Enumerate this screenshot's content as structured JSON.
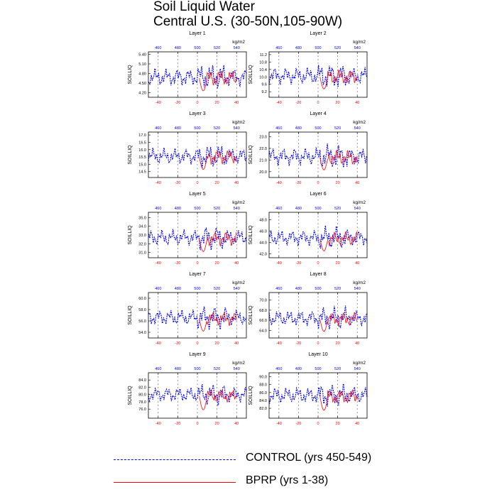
{
  "title": "Soil Liquid Water",
  "subtitle": "Central U.S. (30-50N,105-90W)",
  "colors": {
    "control": "#0000ff",
    "bprp": "#ff0000",
    "frame": "#000000",
    "grid": "#555555"
  },
  "legend": [
    {
      "label": "CONTROL (yrs 450-549)",
      "color": "#0000ff",
      "style": "dashed"
    },
    {
      "label": "BPRP (yrs 1-38)",
      "color": "#ff0000",
      "style": "solid"
    }
  ],
  "chart_data": [
    {
      "type": "line",
      "title": "Layer 1",
      "ylabel": "SOILLIQ",
      "top_axis_unit": "kg/m2",
      "ylim": [
        4.05,
        5.48
      ],
      "yticks": [
        "4.20",
        "4.50",
        "4.80",
        "5.10",
        "5.40"
      ],
      "ytick_values": [
        4.2,
        4.5,
        4.8,
        5.1,
        5.4
      ],
      "control_mean": 4.68,
      "control_amp": 0.3,
      "bprp_mean": 4.65,
      "bprp_amp": 0.28,
      "bprp_dip": 4.25,
      "xlim": [
        -50,
        50
      ],
      "xticks": [
        "-40",
        "-20",
        "0",
        "20",
        "40"
      ],
      "xtick_values": [
        -40,
        -20,
        0,
        20,
        40
      ],
      "top_xticks": [
        "460",
        "480",
        "500",
        "520",
        "540"
      ],
      "top_xtick_values": [
        -40,
        -20,
        0,
        20,
        40
      ]
    },
    {
      "type": "line",
      "title": "Layer 2",
      "ylabel": "SOILLIQ",
      "top_axis_unit": "kg/m2",
      "ylim": [
        8.9,
        11.35
      ],
      "yticks": [
        "9.2",
        "9.6",
        "10.0",
        "10.4",
        "10.8",
        "11.2"
      ],
      "ytick_values": [
        9.2,
        9.6,
        10.0,
        10.4,
        10.8,
        11.2
      ],
      "control_mean": 10.05,
      "control_amp": 0.5,
      "bprp_mean": 10.0,
      "bprp_amp": 0.45,
      "bprp_dip": 9.35,
      "xlim": [
        -50,
        50
      ],
      "xticks": [
        "-40",
        "-20",
        "0",
        "20",
        "40"
      ],
      "xtick_values": [
        -40,
        -20,
        0,
        20,
        40
      ],
      "top_xticks": [
        "460",
        "480",
        "500",
        "520",
        "540"
      ],
      "top_xtick_values": [
        -40,
        -20,
        0,
        20,
        40
      ]
    },
    {
      "type": "line",
      "title": "Layer 3",
      "ylabel": "SOILLIQ",
      "top_axis_unit": "kg/m2",
      "ylim": [
        14.1,
        17.2
      ],
      "yticks": [
        "14.5",
        "15.0",
        "15.5",
        "16.0",
        "16.5",
        "17.0"
      ],
      "ytick_values": [
        14.5,
        15.0,
        15.5,
        16.0,
        16.5,
        17.0
      ],
      "control_mean": 15.55,
      "control_amp": 0.6,
      "bprp_mean": 15.5,
      "bprp_amp": 0.55,
      "bprp_dip": 14.65,
      "xlim": [
        -50,
        50
      ],
      "xticks": [
        "-40",
        "-20",
        "0",
        "20",
        "40"
      ],
      "xtick_values": [
        -40,
        -20,
        0,
        20,
        40
      ],
      "top_xticks": [
        "460",
        "480",
        "500",
        "520",
        "540"
      ],
      "top_xtick_values": [
        -40,
        -20,
        0,
        20,
        40
      ]
    },
    {
      "type": "line",
      "title": "Layer 4",
      "ylabel": "SOILLIQ",
      "top_axis_unit": "kg/m2",
      "ylim": [
        19.5,
        23.4
      ],
      "yticks": [
        "20.0",
        "21.0",
        "22.0",
        "23.0"
      ],
      "ytick_values": [
        20.0,
        21.0,
        22.0,
        23.0
      ],
      "control_mean": 21.3,
      "control_amp": 0.8,
      "bprp_mean": 21.2,
      "bprp_amp": 0.7,
      "bprp_dip": 20.15,
      "xlim": [
        -50,
        50
      ],
      "xticks": [
        "-40",
        "-20",
        "0",
        "20",
        "40"
      ],
      "xtick_values": [
        -40,
        -20,
        0,
        20,
        40
      ],
      "top_xticks": [
        "460",
        "480",
        "500",
        "520",
        "540"
      ],
      "top_xtick_values": [
        -40,
        -20,
        0,
        20,
        40
      ]
    },
    {
      "type": "line",
      "title": "Layer 5",
      "ylabel": "SOILLIQ",
      "top_axis_unit": "kg/m2",
      "ylim": [
        30.4,
        35.6
      ],
      "yticks": [
        "31.0",
        "32.0",
        "33.0",
        "34.0",
        "35.0"
      ],
      "ytick_values": [
        31.0,
        32.0,
        33.0,
        34.0,
        35.0
      ],
      "control_mean": 32.7,
      "control_amp": 1.0,
      "bprp_mean": 32.6,
      "bprp_amp": 0.9,
      "bprp_dip": 31.1,
      "xlim": [
        -50,
        50
      ],
      "xticks": [
        "-40",
        "-20",
        "0",
        "20",
        "40"
      ],
      "xtick_values": [
        -40,
        -20,
        0,
        20,
        40
      ],
      "top_xticks": [
        "460",
        "480",
        "500",
        "520",
        "540"
      ],
      "top_xtick_values": [
        -40,
        -20,
        0,
        20,
        40
      ]
    },
    {
      "type": "line",
      "title": "Layer 6",
      "ylabel": "SOILLIQ",
      "top_axis_unit": "kg/m2",
      "ylim": [
        41.3,
        49.3
      ],
      "yticks": [
        "42.0",
        "44.0",
        "46.0",
        "48.0"
      ],
      "ytick_values": [
        42.0,
        44.0,
        46.0,
        48.0
      ],
      "control_mean": 44.8,
      "control_amp": 1.5,
      "bprp_mean": 44.6,
      "bprp_amp": 1.3,
      "bprp_dip": 42.5,
      "xlim": [
        -50,
        50
      ],
      "xticks": [
        "-40",
        "-20",
        "0",
        "20",
        "40"
      ],
      "xtick_values": [
        -40,
        -20,
        0,
        20,
        40
      ],
      "top_xticks": [
        "460",
        "480",
        "500",
        "520",
        "540"
      ],
      "top_xtick_values": [
        -40,
        -20,
        0,
        20,
        40
      ]
    },
    {
      "type": "line",
      "title": "Layer 7",
      "ylabel": "SOILLIQ",
      "top_axis_unit": "kg/m2",
      "ylim": [
        53.0,
        61.0
      ],
      "yticks": [
        "54.0",
        "56.0",
        "58.0",
        "60.0"
      ],
      "ytick_values": [
        54.0,
        56.0,
        58.0,
        60.0
      ],
      "control_mean": 56.6,
      "control_amp": 1.5,
      "bprp_mean": 56.4,
      "bprp_amp": 1.3,
      "bprp_dip": 54.2,
      "xlim": [
        -50,
        50
      ],
      "xticks": [
        "-40",
        "-20",
        "0",
        "20",
        "40"
      ],
      "xtick_values": [
        -40,
        -20,
        0,
        20,
        40
      ],
      "top_xticks": [
        "460",
        "480",
        "500",
        "520",
        "540"
      ],
      "top_xtick_values": [
        -40,
        -20,
        0,
        20,
        40
      ]
    },
    {
      "type": "line",
      "title": "Layer 8",
      "ylabel": "SOILLIQ",
      "top_axis_unit": "kg/m2",
      "ylim": [
        62.5,
        71.5
      ],
      "yticks": [
        "64.0",
        "66.0",
        "68.0",
        "70.0"
      ],
      "ytick_values": [
        64.0,
        66.0,
        68.0,
        70.0
      ],
      "control_mean": 66.4,
      "control_amp": 1.7,
      "bprp_mean": 66.2,
      "bprp_amp": 1.5,
      "bprp_dip": 63.8,
      "xlim": [
        -50,
        50
      ],
      "xticks": [
        "-40",
        "-20",
        "0",
        "20",
        "40"
      ],
      "xtick_values": [
        -40,
        -20,
        0,
        20,
        40
      ],
      "top_xticks": [
        "460",
        "480",
        "500",
        "520",
        "540"
      ],
      "top_xtick_values": [
        -40,
        -20,
        0,
        20,
        40
      ]
    },
    {
      "type": "line",
      "title": "Layer 9",
      "ylabel": "SOILLIQ",
      "top_axis_unit": "kg/m2",
      "ylim": [
        73.5,
        86.0
      ],
      "yticks": [
        "76.0",
        "78.0",
        "80.0",
        "82.0",
        "84.0"
      ],
      "ytick_values": [
        76.0,
        78.0,
        80.0,
        82.0,
        84.0
      ],
      "control_mean": 80.0,
      "control_amp": 2.2,
      "bprp_mean": 79.6,
      "bprp_amp": 2.0,
      "bprp_dip": 75.8,
      "xlim": [
        -50,
        50
      ],
      "xticks": [
        "-40",
        "-20",
        "0",
        "20",
        "40"
      ],
      "xtick_values": [
        -40,
        -20,
        0,
        20,
        40
      ],
      "top_xticks": [
        "460",
        "480",
        "500",
        "520",
        "540"
      ],
      "top_xtick_values": [
        -40,
        -20,
        0,
        20,
        40
      ]
    },
    {
      "type": "line",
      "title": "Layer 10",
      "ylabel": "SOILLIQ",
      "top_axis_unit": "kg/m2",
      "ylim": [
        79.5,
        91.0
      ],
      "yticks": [
        "82.0",
        "84.0",
        "86.0",
        "88.0",
        "90.0"
      ],
      "ytick_values": [
        82.0,
        84.0,
        86.0,
        88.0,
        90.0
      ],
      "control_mean": 85.3,
      "control_amp": 2.2,
      "bprp_mean": 85.0,
      "bprp_amp": 2.0,
      "bprp_dip": 81.5,
      "xlim": [
        -50,
        50
      ],
      "xticks": [
        "-40",
        "-20",
        "0",
        "20",
        "40"
      ],
      "xtick_values": [
        -40,
        -20,
        0,
        20,
        40
      ],
      "top_xticks": [
        "460",
        "480",
        "500",
        "520",
        "540"
      ],
      "top_xtick_values": [
        -40,
        -20,
        0,
        20,
        40
      ]
    }
  ]
}
